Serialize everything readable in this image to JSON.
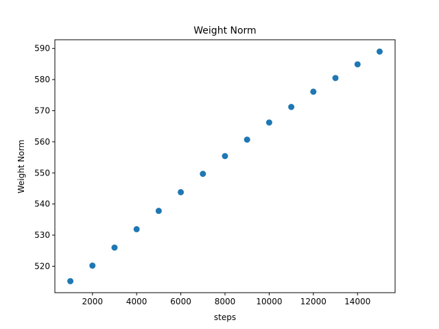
{
  "chart_data": {
    "type": "scatter",
    "title": "Weight Norm",
    "xlabel": "steps",
    "ylabel": "Weight Norm",
    "xlim": [
      300,
      15700
    ],
    "ylim": [
      511.5,
      592.8
    ],
    "xticks": [
      2000,
      4000,
      6000,
      8000,
      10000,
      12000,
      14000
    ],
    "yticks": [
      520,
      530,
      540,
      550,
      560,
      570,
      580,
      590
    ],
    "grid": false,
    "color": "#1f77b4",
    "x": [
      1000,
      2000,
      3000,
      4000,
      5000,
      6000,
      7000,
      8000,
      9000,
      10000,
      11000,
      12000,
      13000,
      14000,
      15000
    ],
    "y": [
      515.2,
      520.2,
      526.0,
      531.9,
      537.8,
      543.8,
      549.7,
      555.4,
      560.7,
      566.2,
      571.2,
      576.1,
      580.5,
      584.9,
      589.0
    ]
  }
}
